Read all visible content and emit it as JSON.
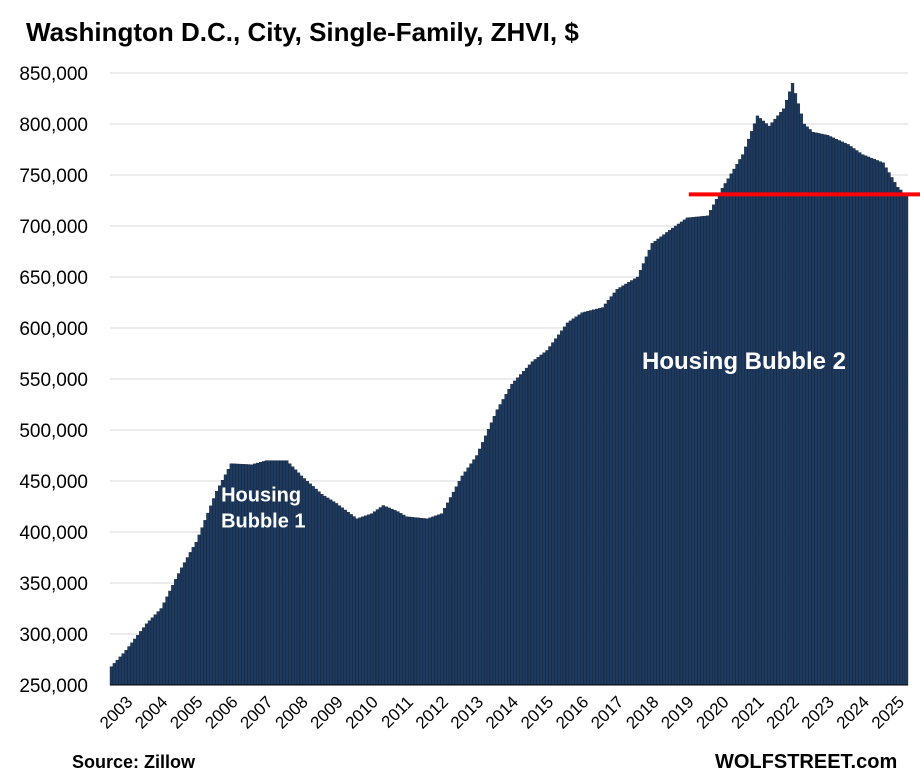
{
  "chart_data": {
    "type": "bar",
    "title": "Washington D.C., City, Single-Family, ZHVI, $",
    "ylim": [
      250000,
      850000
    ],
    "y_ticks": [
      "850,000",
      "800,000",
      "750,000",
      "700,000",
      "650,000",
      "600,000",
      "550,000",
      "500,000",
      "450,000",
      "400,000",
      "350,000",
      "300,000",
      "250,000"
    ],
    "x_ticks": [
      "2003",
      "2004",
      "2005",
      "2006",
      "2007",
      "2008",
      "2009",
      "2010",
      "2011",
      "2012",
      "2013",
      "2014",
      "2015",
      "2016",
      "2017",
      "2018",
      "2019",
      "2020",
      "2021",
      "2022",
      "2023",
      "2024",
      "2025"
    ],
    "grid": true,
    "bar_color": "#1f3a5f",
    "series": [
      {
        "start": "2003-01",
        "frequency": "monthly",
        "anchors": [
          [
            "2003-01",
            268000
          ],
          [
            "2003-06",
            284000
          ],
          [
            "2004-01",
            310000
          ],
          [
            "2004-06",
            325000
          ],
          [
            "2005-01",
            365000
          ],
          [
            "2005-06",
            390000
          ],
          [
            "2006-01",
            440000
          ],
          [
            "2006-06",
            467000
          ],
          [
            "2007-01",
            466000
          ],
          [
            "2007-06",
            470000
          ],
          [
            "2008-01",
            470000
          ],
          [
            "2008-06",
            455000
          ],
          [
            "2009-01",
            437000
          ],
          [
            "2009-06",
            428000
          ],
          [
            "2010-01",
            413000
          ],
          [
            "2010-06",
            418000
          ],
          [
            "2010-10",
            426000
          ],
          [
            "2011-03",
            420000
          ],
          [
            "2011-06",
            415000
          ],
          [
            "2012-01",
            413000
          ],
          [
            "2012-06",
            418000
          ],
          [
            "2013-01",
            455000
          ],
          [
            "2013-06",
            475000
          ],
          [
            "2014-01",
            520000
          ],
          [
            "2014-06",
            545000
          ],
          [
            "2015-01",
            567000
          ],
          [
            "2015-06",
            578000
          ],
          [
            "2016-01",
            605000
          ],
          [
            "2016-06",
            615000
          ],
          [
            "2017-01",
            620000
          ],
          [
            "2017-06",
            638000
          ],
          [
            "2018-01",
            650000
          ],
          [
            "2018-06",
            683000
          ],
          [
            "2019-01",
            698000
          ],
          [
            "2019-06",
            708000
          ],
          [
            "2020-01",
            710000
          ],
          [
            "2020-06",
            737000
          ],
          [
            "2021-01",
            770000
          ],
          [
            "2021-06",
            808000
          ],
          [
            "2021-10",
            798000
          ],
          [
            "2022-03",
            815000
          ],
          [
            "2022-06",
            840000
          ],
          [
            "2022-10",
            800000
          ],
          [
            "2023-01",
            792000
          ],
          [
            "2023-06",
            789000
          ],
          [
            "2024-01",
            780000
          ],
          [
            "2024-06",
            770000
          ],
          [
            "2025-01",
            762000
          ],
          [
            "2025-06",
            738000
          ],
          [
            "2025-09",
            730000
          ]
        ]
      }
    ],
    "reference_line": {
      "value": 731000,
      "from": "2019-07",
      "color": "#ff0000"
    },
    "annotations": [
      {
        "text_lines": [
          "Housing",
          "Bubble 1"
        ],
        "date": "2006-03",
        "value": 430000,
        "size": 20
      },
      {
        "text_lines": [
          "Housing Bubble 2"
        ],
        "date": "2018-03",
        "value": 560000,
        "size": 24
      }
    ]
  },
  "source": "Source: Zillow",
  "brand": "WOLFSTREET.com"
}
